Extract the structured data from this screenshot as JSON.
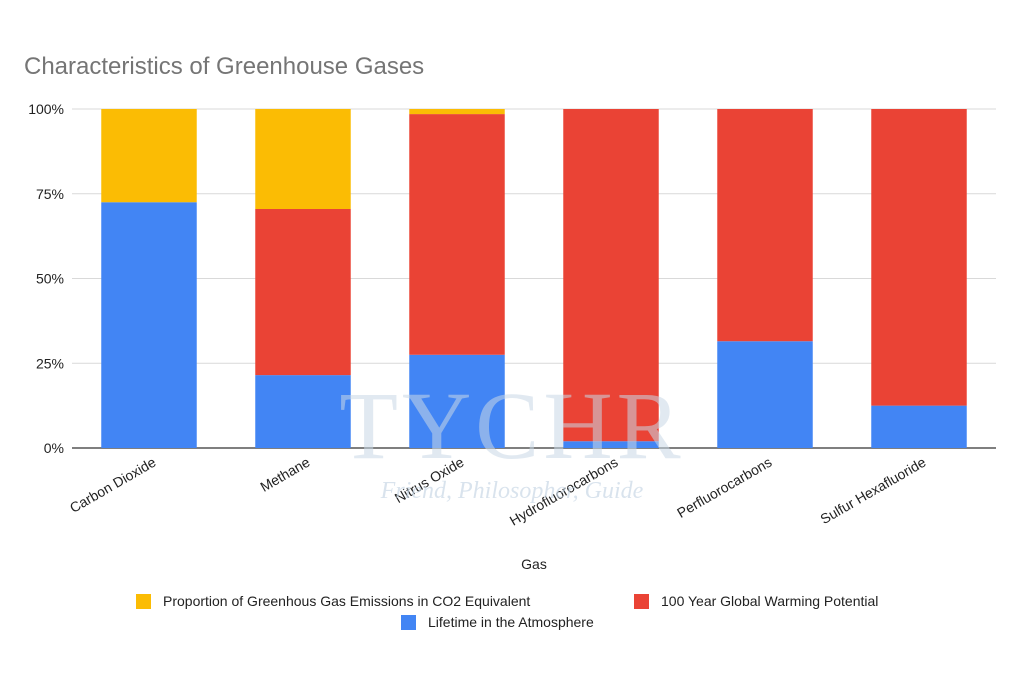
{
  "chart_data": {
    "type": "bar",
    "stacked": true,
    "normalized": true,
    "title": "Characteristics of Greenhouse Gases",
    "xlabel": "Gas",
    "ylabel": "",
    "ylim": [
      0,
      100
    ],
    "yticks": [
      "0%",
      "25%",
      "50%",
      "75%",
      "100%"
    ],
    "grid": true,
    "legend_position": "bottom",
    "categories": [
      "Carbon Dioxide",
      "Methane",
      "Nitrus Oxide",
      "Hydrofluorocarbons",
      "Perfluorocarbons",
      "Sulfur Hexafluoride"
    ],
    "series": [
      {
        "name": "Lifetime in the Atmosphere",
        "color": "#4285f4",
        "values": [
          72.5,
          21.5,
          27.5,
          2,
          31.5,
          12.5
        ]
      },
      {
        "name": "100 Year Global Warming Potential",
        "color": "#ea4335",
        "values": [
          0,
          49,
          71,
          98,
          68.5,
          87.5
        ]
      },
      {
        "name": "Proportion of Greenhous Gas Emissions in CO2 Equivalent",
        "color": "#fbbc04",
        "values": [
          27.5,
          29.5,
          1.5,
          0,
          0,
          0
        ]
      }
    ],
    "legend_order": [
      2,
      1,
      0
    ]
  },
  "watermark": {
    "brand": "TYCHR",
    "tagline": "Friend, Philosopher, Guide"
  }
}
